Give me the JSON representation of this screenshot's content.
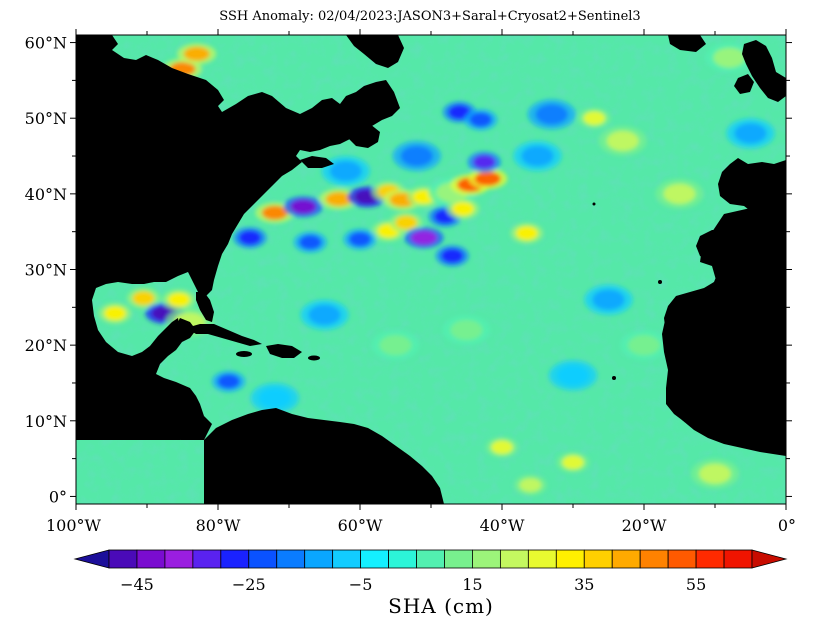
{
  "title": "SSH Anomaly: 02/04/2023:JASON3+Saral+Cryosat2+Sentinel3",
  "map": {
    "lon_range": [
      -100,
      0
    ],
    "lat_range": [
      -1,
      61
    ],
    "x_ticks": [
      {
        "lon": -100,
        "label": "100°W"
      },
      {
        "lon": -80,
        "label": "80°W"
      },
      {
        "lon": -60,
        "label": "60°W"
      },
      {
        "lon": -40,
        "label": "40°W"
      },
      {
        "lon": -20,
        "label": "20°W"
      },
      {
        "lon": 0,
        "label": "0°"
      }
    ],
    "y_ticks": [
      {
        "lat": 60,
        "label": "60°N"
      },
      {
        "lat": 50,
        "label": "50°N"
      },
      {
        "lat": 40,
        "label": "40°N"
      },
      {
        "lat": 30,
        "label": "30°N"
      },
      {
        "lat": 20,
        "label": "20°N"
      },
      {
        "lat": 10,
        "label": "10°N"
      },
      {
        "lat": 0,
        "label": "0°"
      }
    ],
    "land_color": "#000000",
    "ocean_base_color": "#55e8a8"
  },
  "colorbar": {
    "min": -55,
    "max": 65,
    "step": 5,
    "colors": [
      "#1c0f9a",
      "#4a0ab8",
      "#7a0cd0",
      "#9a1ee0",
      "#5a22f0",
      "#1a22ff",
      "#0a52ff",
      "#0a7cff",
      "#0aa6ff",
      "#12ccff",
      "#14f0ff",
      "#2cf5d8",
      "#52f0b0",
      "#78f08e",
      "#9cf47a",
      "#c4f860",
      "#e8fa30",
      "#fff000",
      "#ffd000",
      "#ffaa00",
      "#ff8200",
      "#ff5a00",
      "#ff2a00",
      "#f01400",
      "#c80c00"
    ],
    "labels": [
      "-45",
      "-25",
      "-5",
      "15",
      "35",
      "55"
    ],
    "label_values": [
      -45,
      -25,
      -5,
      15,
      35,
      55
    ],
    "units": "SHA (cm)"
  },
  "anomalies": [
    {
      "lon": -72,
      "lat": 37.5,
      "v": 45
    },
    {
      "lon": -68,
      "lat": 38.3,
      "v": -45
    },
    {
      "lon": -63,
      "lat": 39.3,
      "v": 40
    },
    {
      "lon": -59,
      "lat": 39.6,
      "v": -50
    },
    {
      "lon": -56,
      "lat": 40.3,
      "v": 35
    },
    {
      "lon": -54,
      "lat": 39.2,
      "v": 40
    },
    {
      "lon": -51,
      "lat": 39.6,
      "v": 30
    },
    {
      "lon": -47,
      "lat": 40.2,
      "v": 15
    },
    {
      "lon": -44.5,
      "lat": 41.2,
      "v": 50
    },
    {
      "lon": -42,
      "lat": 42.0,
      "v": 50
    },
    {
      "lon": -42.5,
      "lat": 44.2,
      "v": -35
    },
    {
      "lon": -56,
      "lat": 35.1,
      "v": 30
    },
    {
      "lon": -53.5,
      "lat": 36.2,
      "v": 35
    },
    {
      "lon": -51,
      "lat": 34.2,
      "v": -40
    },
    {
      "lon": -48,
      "lat": 37.0,
      "v": -30
    },
    {
      "lon": -45.5,
      "lat": 38.0,
      "v": 30
    },
    {
      "lon": -60,
      "lat": 34.0,
      "v": -25
    },
    {
      "lon": -67,
      "lat": 33.6,
      "v": -25
    },
    {
      "lon": -75.5,
      "lat": 34.2,
      "v": -30
    },
    {
      "lon": -47,
      "lat": 31.8,
      "v": -30
    },
    {
      "lon": -36.5,
      "lat": 34.8,
      "v": 30
    },
    {
      "lon": -46,
      "lat": 50.8,
      "v": -30
    },
    {
      "lon": -43,
      "lat": 49.8,
      "v": -25
    },
    {
      "lon": -33,
      "lat": 50.5,
      "v": -20
    },
    {
      "lon": -27,
      "lat": 50.0,
      "v": 25
    },
    {
      "lon": -23,
      "lat": 47.0,
      "v": 20
    },
    {
      "lon": -90.5,
      "lat": 26.2,
      "v": 35
    },
    {
      "lon": -87.5,
      "lat": 24.2,
      "v": -50
    },
    {
      "lon": -85.5,
      "lat": 26.0,
      "v": 30
    },
    {
      "lon": -94.5,
      "lat": 24.2,
      "v": 30
    },
    {
      "lon": -84,
      "lat": 23.0,
      "v": 20
    },
    {
      "lon": -78.5,
      "lat": 15.2,
      "v": -25
    },
    {
      "lon": -72,
      "lat": 13.0,
      "v": -10
    },
    {
      "lon": -85,
      "lat": 56.5,
      "v": 45
    },
    {
      "lon": -83,
      "lat": 58.5,
      "v": 40
    },
    {
      "lon": -85.5,
      "lat": 53.5,
      "v": 20
    },
    {
      "lon": -40,
      "lat": 6.5,
      "v": 25
    },
    {
      "lon": -30,
      "lat": 4.5,
      "v": 25
    },
    {
      "lon": -36,
      "lat": 1.5,
      "v": 22
    },
    {
      "lon": -10,
      "lat": 3.0,
      "v": 20
    },
    {
      "lon": -25,
      "lat": 26.0,
      "v": -12
    },
    {
      "lon": -20,
      "lat": 20.0,
      "v": 12
    },
    {
      "lon": -15,
      "lat": 40.0,
      "v": 20
    },
    {
      "lon": -35,
      "lat": 45.0,
      "v": -15
    },
    {
      "lon": -52,
      "lat": 45.0,
      "v": -20
    },
    {
      "lon": -62,
      "lat": 43.0,
      "v": -12
    },
    {
      "lon": -30,
      "lat": 16.0,
      "v": -10
    },
    {
      "lon": -55,
      "lat": 20.0,
      "v": 12
    },
    {
      "lon": -65,
      "lat": 24.0,
      "v": -12
    },
    {
      "lon": -45,
      "lat": 22.0,
      "v": 10
    },
    {
      "lon": -8,
      "lat": 58.0,
      "v": 15
    },
    {
      "lon": -5,
      "lat": 48.0,
      "v": -12
    }
  ]
}
